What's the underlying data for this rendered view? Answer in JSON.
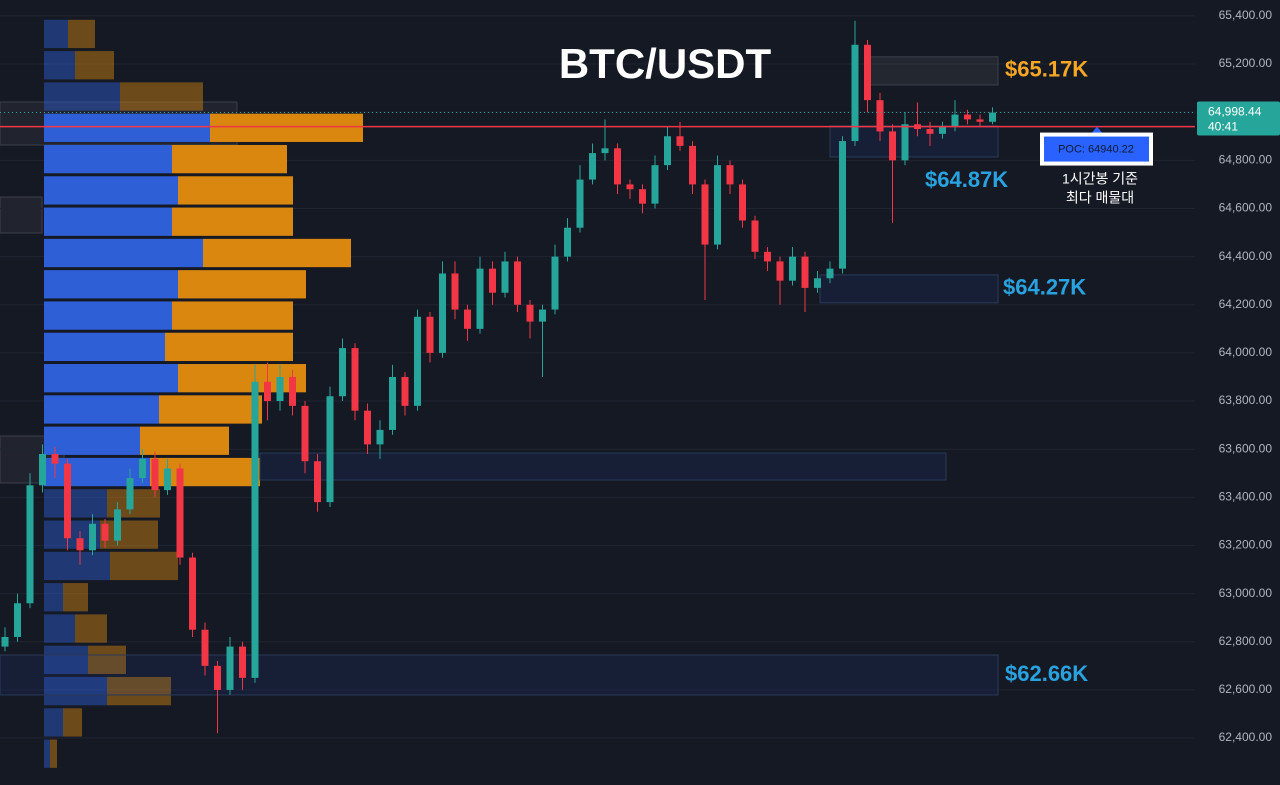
{
  "chart_data": {
    "type": "candlestick",
    "title": "BTC/USDT",
    "ylim": [
      62205,
      65466
    ],
    "yticks": [
      {
        "value": 62400,
        "label": "62,400.00"
      },
      {
        "value": 62600,
        "label": "62,600.00"
      },
      {
        "value": 62800,
        "label": "62,800.00"
      },
      {
        "value": 63000,
        "label": "63,000.00"
      },
      {
        "value": 63200,
        "label": "63,200.00"
      },
      {
        "value": 63400,
        "label": "63,400.00"
      },
      {
        "value": 63600,
        "label": "63,600.00"
      },
      {
        "value": 63800,
        "label": "63,800.00"
      },
      {
        "value": 64000,
        "label": "64,000.00"
      },
      {
        "value": 64200,
        "label": "64,200.00"
      },
      {
        "value": 64400,
        "label": "64,400.00"
      },
      {
        "value": 64600,
        "label": "64,600.00"
      },
      {
        "value": 64800,
        "label": "64,800.00"
      },
      {
        "value": 65000,
        "label": "65,000.00"
      },
      {
        "value": 65200,
        "label": "65,200.00"
      },
      {
        "value": 65400,
        "label": "65,400.00"
      }
    ],
    "grid": true,
    "up_color": "#26a69a",
    "down_color": "#f23645",
    "ohlc": [
      [
        62780,
        62860,
        62760,
        62820
      ],
      [
        62820,
        63000,
        62800,
        62960
      ],
      [
        62960,
        63500,
        62940,
        63450
      ],
      [
        63450,
        63620,
        63420,
        63580
      ],
      [
        63580,
        63610,
        63480,
        63540
      ],
      [
        63540,
        63560,
        63180,
        63230
      ],
      [
        63230,
        63260,
        63120,
        63180
      ],
      [
        63180,
        63330,
        63160,
        63290
      ],
      [
        63290,
        63310,
        63190,
        63220
      ],
      [
        63220,
        63380,
        63200,
        63350
      ],
      [
        63350,
        63520,
        63330,
        63480
      ],
      [
        63480,
        63600,
        63460,
        63560
      ],
      [
        63560,
        63590,
        63400,
        63430
      ],
      [
        63430,
        63560,
        63410,
        63520
      ],
      [
        63520,
        63540,
        63120,
        63150
      ],
      [
        63150,
        63170,
        62820,
        62850
      ],
      [
        62850,
        62880,
        62660,
        62700
      ],
      [
        62700,
        62720,
        62420,
        62600
      ],
      [
        62600,
        62820,
        62580,
        62780
      ],
      [
        62780,
        62800,
        62600,
        62650
      ],
      [
        62650,
        63950,
        62630,
        63880
      ],
      [
        63880,
        63960,
        63720,
        63800
      ],
      [
        63800,
        63950,
        63760,
        63900
      ],
      [
        63900,
        63930,
        63740,
        63780
      ],
      [
        63780,
        63800,
        63500,
        63550
      ],
      [
        63550,
        63580,
        63340,
        63380
      ],
      [
        63380,
        63860,
        63360,
        63820
      ],
      [
        63820,
        64060,
        63800,
        64020
      ],
      [
        64020,
        64040,
        63720,
        63760
      ],
      [
        63760,
        63790,
        63580,
        63620
      ],
      [
        63620,
        63720,
        63560,
        63680
      ],
      [
        63680,
        63950,
        63660,
        63900
      ],
      [
        63900,
        63920,
        63740,
        63780
      ],
      [
        63780,
        64180,
        63760,
        64150
      ],
      [
        64150,
        64170,
        63960,
        64000
      ],
      [
        64000,
        64380,
        63980,
        64330
      ],
      [
        64330,
        64380,
        64140,
        64180
      ],
      [
        64180,
        64200,
        64050,
        64100
      ],
      [
        64100,
        64400,
        64080,
        64350
      ],
      [
        64350,
        64380,
        64200,
        64250
      ],
      [
        64250,
        64420,
        64230,
        64380
      ],
      [
        64380,
        64400,
        64170,
        64200
      ],
      [
        64200,
        64220,
        64060,
        64130
      ],
      [
        64130,
        64200,
        63900,
        64180
      ],
      [
        64180,
        64450,
        64160,
        64400
      ],
      [
        64400,
        64560,
        64380,
        64520
      ],
      [
        64520,
        64780,
        64500,
        64720
      ],
      [
        64720,
        64870,
        64700,
        64830
      ],
      [
        64830,
        64970,
        64800,
        64850
      ],
      [
        64850,
        64870,
        64660,
        64700
      ],
      [
        64700,
        64720,
        64640,
        64680
      ],
      [
        64680,
        64700,
        64580,
        64620
      ],
      [
        64620,
        64820,
        64600,
        64780
      ],
      [
        64780,
        64940,
        64760,
        64900
      ],
      [
        64900,
        64960,
        64840,
        64860
      ],
      [
        64860,
        64880,
        64660,
        64700
      ],
      [
        64700,
        64720,
        64220,
        64450
      ],
      [
        64450,
        64820,
        64430,
        64780
      ],
      [
        64780,
        64800,
        64660,
        64700
      ],
      [
        64700,
        64720,
        64520,
        64550
      ],
      [
        64550,
        64570,
        64390,
        64420
      ],
      [
        64420,
        64440,
        64340,
        64380
      ],
      [
        64380,
        64400,
        64200,
        64300
      ],
      [
        64300,
        64440,
        64280,
        64400
      ],
      [
        64400,
        64420,
        64170,
        64270
      ],
      [
        64270,
        64340,
        64250,
        64310
      ],
      [
        64310,
        64380,
        64290,
        64350
      ],
      [
        64350,
        64900,
        64330,
        64880
      ],
      [
        64880,
        65380,
        64860,
        65280
      ],
      [
        65280,
        65300,
        65000,
        65050
      ],
      [
        65050,
        65080,
        64880,
        64920
      ],
      [
        64920,
        64950,
        64540,
        64800
      ],
      [
        64800,
        65000,
        64780,
        64950
      ],
      [
        64950,
        65040,
        64900,
        64930
      ],
      [
        64930,
        64960,
        64860,
        64910
      ],
      [
        64910,
        64960,
        64890,
        64940
      ],
      [
        64940,
        65050,
        64920,
        64990
      ],
      [
        64990,
        65010,
        64950,
        64970
      ],
      [
        64970,
        64990,
        64940,
        64960
      ],
      [
        64960,
        65020,
        64950,
        64998.44
      ]
    ],
    "volume_profile": {
      "price_bins": [
        62270,
        62400,
        62530,
        62660,
        62790,
        62920,
        63050,
        63180,
        63310,
        63440,
        63570,
        63700,
        63830,
        63960,
        64090,
        64220,
        64350,
        64480,
        64610,
        64740,
        64870,
        65000,
        65130,
        65260,
        65390
      ],
      "buy": [
        6,
        19,
        63,
        44,
        31,
        19,
        66,
        56,
        63,
        106,
        96,
        115,
        134,
        121,
        128,
        134,
        159,
        128,
        134,
        128,
        166,
        76,
        31,
        24
      ],
      "sell": [
        7,
        19,
        64,
        38,
        32,
        25,
        68,
        58,
        53,
        110,
        89,
        103,
        128,
        128,
        121,
        128,
        148,
        121,
        115,
        115,
        153,
        83,
        39,
        27
      ],
      "buy_color": "#2f5fd6",
      "sell_color": "#d9870f",
      "value_area": [
        63440,
        65000
      ]
    },
    "zones": [
      {
        "label": "$65.17K",
        "low": 65113,
        "high": 65230,
        "color": "#f5a623"
      },
      {
        "label": "$64.87K",
        "low": 64814,
        "high": 64943,
        "color": "#29a3e0"
      },
      {
        "label": "$64.27K",
        "low": 64208,
        "high": 64324,
        "color": "#29a3e0"
      },
      {
        "label": "$62.66K",
        "low": 62579,
        "high": 62745,
        "color": "#29a3e0"
      },
      {
        "low": 63472,
        "high": 63584,
        "color": "#29a3e0"
      }
    ],
    "poc": {
      "value": 64940.22,
      "label": "POC: 64940.22",
      "note": [
        "1시간봉 기준",
        "최다 매물대"
      ]
    },
    "current_price": {
      "value": 64998.44,
      "label": "64,998.44",
      "countdown": "40:41"
    }
  }
}
